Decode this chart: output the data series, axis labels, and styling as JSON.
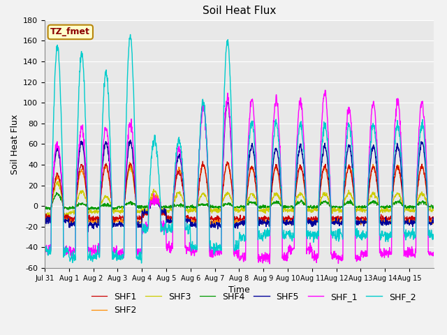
{
  "title": "Soil Heat Flux",
  "xlabel": "Time",
  "ylabel": "Soil Heat Flux",
  "xlim": [
    0,
    16
  ],
  "ylim": [
    -60,
    180
  ],
  "yticks": [
    -60,
    -40,
    -20,
    0,
    20,
    40,
    60,
    80,
    100,
    120,
    140,
    160,
    180
  ],
  "xtick_labels": [
    "Jul 31",
    "Aug 1",
    "Aug 2",
    "Aug 3",
    "Aug 4",
    "Aug 5",
    "Aug 6",
    "Aug 7",
    "Aug 8",
    "Aug 9",
    "Aug 10",
    "Aug 11",
    "Aug 12",
    "Aug 13",
    "Aug 14",
    "Aug 15"
  ],
  "annotation_text": "TZ_fmet",
  "annotation_color": "#8B0000",
  "annotation_bg": "#FFFFCC",
  "annotation_border": "#B8860B",
  "colors": {
    "SHF1": "#CC0000",
    "SHF2": "#FF8C00",
    "SHF3": "#CCCC00",
    "SHF4": "#009900",
    "SHF5": "#000099",
    "SHF_1": "#FF00FF",
    "SHF_2": "#00CCCC"
  },
  "background_color": "#E8E8E8",
  "grid_color": "#FFFFFF",
  "title_fontsize": 11,
  "axis_fontsize": 9,
  "tick_fontsize": 8,
  "legend_fontsize": 9
}
